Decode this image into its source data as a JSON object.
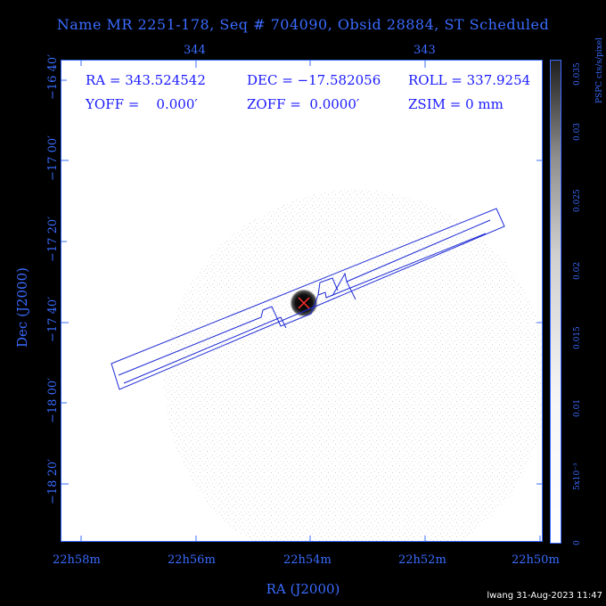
{
  "title": "Name MR 2251-178, Seq # 704090, Obsid 28884, ST Scheduled",
  "top_axis": {
    "ticks": [
      "344",
      "343"
    ]
  },
  "info": {
    "ra": "RA = 343.524542",
    "dec": "DEC = −17.582056",
    "roll": "ROLL = 337.9254",
    "yoff": "YOFF =    0.000′",
    "zoff": "ZOFF =  0.0000′",
    "zsim": "ZSIM = 0 mm"
  },
  "y_axis": {
    "label": "Dec (J2000)",
    "ticks": [
      "−16 40′",
      "−17 00′",
      "−17 20′",
      "−17 40′",
      "−18 00′",
      "−18 20′"
    ]
  },
  "x_axis": {
    "label": "RA (J2000)",
    "ticks": [
      "22h58m",
      "22h56m",
      "22h54m",
      "22h52m",
      "22h50m"
    ]
  },
  "colorbar": {
    "label": "PSPC cts/s/pixel",
    "ticks": [
      "0",
      "5x10⁻³",
      "0.01",
      "0.015",
      "0.02",
      "0.025",
      "0.03",
      "0.035"
    ]
  },
  "footer": "lwang 31-Aug-2023 11:47",
  "colors": {
    "axis": "#3a6cff",
    "info": "#1a1aff",
    "overlay": "#1e2bd6",
    "marker": "#ff3030"
  }
}
